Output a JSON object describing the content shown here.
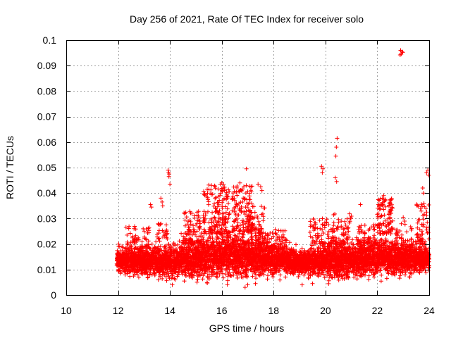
{
  "chart_data": {
    "type": "scatter",
    "title": "Day 256 of 2021, Rate Of TEC Index for receiver solo",
    "xlabel": "GPS time / hours",
    "ylabel": "ROTI / TECUs",
    "xlim": [
      10,
      24
    ],
    "ylim": [
      0,
      0.1
    ],
    "xticks": [
      10,
      12,
      14,
      16,
      18,
      20,
      22,
      24
    ],
    "yticks": [
      0,
      0.01,
      0.02,
      0.03,
      0.04,
      0.05,
      0.06,
      0.07,
      0.08,
      0.09,
      0.1
    ],
    "xtick_labels": [
      "10",
      "12",
      "14",
      "16",
      "18",
      "20",
      "22",
      "24"
    ],
    "ytick_labels": [
      "0",
      "0.01",
      "0.02",
      "0.03",
      "0.04",
      "0.05",
      "0.06",
      "0.07",
      "0.08",
      "0.09",
      "0.1"
    ],
    "grid": true,
    "marker": "+",
    "color": "#ff0000",
    "series": [
      {
        "name": "ROTI",
        "band": {
          "x_start": 11.95,
          "x_end": 24.0,
          "step_hours": 0.006,
          "baseline": [
            [
              12.0,
              0.0135
            ],
            [
              14.0,
              0.0135
            ],
            [
              15.5,
              0.015
            ],
            [
              16.5,
              0.016
            ],
            [
              17.5,
              0.015
            ],
            [
              19.0,
              0.013
            ],
            [
              20.0,
              0.0135
            ],
            [
              21.0,
              0.014
            ],
            [
              22.0,
              0.015
            ],
            [
              23.0,
              0.0145
            ],
            [
              24.0,
              0.014
            ]
          ],
          "spread": [
            [
              12.0,
              0.004
            ],
            [
              15.5,
              0.007
            ],
            [
              17.0,
              0.007
            ],
            [
              19.0,
              0.004
            ],
            [
              20.5,
              0.006
            ],
            [
              22.5,
              0.006
            ],
            [
              24.0,
              0.004
            ]
          ],
          "floor": 0.004,
          "ceiling": 0.03
        },
        "clusters": [
          {
            "x": [
              12.3,
              13.2
            ],
            "y": [
              0.018,
              0.027
            ],
            "n": 60
          },
          {
            "x": [
              13.5,
              13.9
            ],
            "y": [
              0.022,
              0.028
            ],
            "n": 25
          },
          {
            "x": [
              14.5,
              15.3
            ],
            "y": [
              0.02,
              0.033
            ],
            "n": 90
          },
          {
            "x": [
              15.3,
              16.3
            ],
            "y": [
              0.024,
              0.044
            ],
            "n": 180
          },
          {
            "x": [
              16.4,
              17.2
            ],
            "y": [
              0.025,
              0.043
            ],
            "n": 150
          },
          {
            "x": [
              17.0,
              17.7
            ],
            "y": [
              0.02,
              0.035
            ],
            "n": 90
          },
          {
            "x": [
              17.7,
              18.5
            ],
            "y": [
              0.018,
              0.026
            ],
            "n": 60
          },
          {
            "x": [
              19.4,
              20.3
            ],
            "y": [
              0.02,
              0.03
            ],
            "n": 70
          },
          {
            "x": [
              20.3,
              21.0
            ],
            "y": [
              0.02,
              0.032
            ],
            "n": 70
          },
          {
            "x": [
              21.2,
              22.0
            ],
            "y": [
              0.02,
              0.028
            ],
            "n": 60
          },
          {
            "x": [
              22.0,
              22.6
            ],
            "y": [
              0.024,
              0.038
            ],
            "n": 100
          },
          {
            "x": [
              22.7,
              23.4
            ],
            "y": [
              0.018,
              0.028
            ],
            "n": 50
          },
          {
            "x": [
              23.5,
              24.0
            ],
            "y": [
              0.02,
              0.036
            ],
            "n": 60
          }
        ],
        "points": [
          [
            13.25,
            0.0355
          ],
          [
            13.28,
            0.0345
          ],
          [
            13.65,
            0.038
          ],
          [
            13.7,
            0.0365
          ],
          [
            13.72,
            0.035
          ],
          [
            13.93,
            0.049
          ],
          [
            13.95,
            0.048
          ],
          [
            13.97,
            0.0475
          ],
          [
            13.96,
            0.0465
          ],
          [
            14.0,
            0.0435
          ],
          [
            15.05,
            0.0325
          ],
          [
            15.1,
            0.031
          ],
          [
            16.0,
            0.044
          ],
          [
            16.05,
            0.042
          ],
          [
            15.6,
            0.043
          ],
          [
            16.95,
            0.0495
          ],
          [
            16.7,
            0.044
          ],
          [
            16.85,
            0.0425
          ],
          [
            17.4,
            0.0435
          ],
          [
            17.5,
            0.0425
          ],
          [
            17.55,
            0.041
          ],
          [
            19.85,
            0.0505
          ],
          [
            19.9,
            0.0495
          ],
          [
            19.88,
            0.048
          ],
          [
            20.45,
            0.0615
          ],
          [
            20.42,
            0.058
          ],
          [
            20.4,
            0.0545
          ],
          [
            20.38,
            0.046
          ],
          [
            20.43,
            0.0445
          ],
          [
            21.35,
            0.0355
          ],
          [
            22.25,
            0.039
          ],
          [
            22.3,
            0.0375
          ],
          [
            22.5,
            0.036
          ],
          [
            22.9,
            0.096
          ],
          [
            22.95,
            0.0955
          ],
          [
            22.92,
            0.0945
          ],
          [
            22.98,
            0.0952
          ],
          [
            22.88,
            0.0942
          ],
          [
            23.0,
            0.0305
          ],
          [
            23.05,
            0.029
          ],
          [
            23.75,
            0.042
          ],
          [
            23.78,
            0.04
          ],
          [
            23.8,
            0.036
          ],
          [
            23.9,
            0.048
          ],
          [
            23.95,
            0.049
          ],
          [
            23.98,
            0.047
          ],
          [
            16.9,
            0.003
          ],
          [
            17.0,
            0.004
          ],
          [
            17.3,
            0.0045
          ],
          [
            19.1,
            0.004
          ],
          [
            19.5,
            0.0045
          ]
        ]
      }
    ]
  }
}
